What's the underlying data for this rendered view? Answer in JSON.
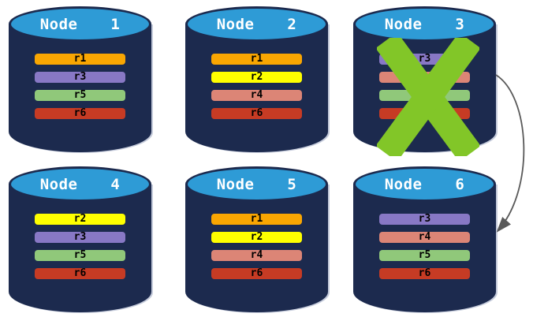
{
  "diagram": {
    "description": "database-cluster-replication",
    "node_count": 6
  },
  "colors": {
    "cylinder_body": "#1C2A4E",
    "cylinder_top": "#2E9BD6",
    "node_title_text": "#FFFFFF",
    "bar_text": "#000000",
    "replica_r1": "#F9A602",
    "replica_r2": "#FFFF00",
    "replica_r3": "#8878C5",
    "replica_r4": "#DC8576",
    "replica_r5": "#90C87A",
    "replica_r6": "#C63B24",
    "failure_x": "#82C628",
    "arrow": "#595959"
  },
  "nodes": [
    {
      "label": "Node  1",
      "failed": false,
      "bars": [
        {
          "label": "r1",
          "color": "#F9A602"
        },
        {
          "label": "r3",
          "color": "#8878C5"
        },
        {
          "label": "r5",
          "color": "#90C87A"
        },
        {
          "label": "r6",
          "color": "#C63B24"
        }
      ]
    },
    {
      "label": "Node  2",
      "failed": false,
      "bars": [
        {
          "label": "r1",
          "color": "#F9A602"
        },
        {
          "label": "r2",
          "color": "#FFFF00"
        },
        {
          "label": "r4",
          "color": "#DC8576"
        },
        {
          "label": "r6",
          "color": "#C63B24"
        }
      ]
    },
    {
      "label": "Node  3",
      "failed": true,
      "bars": [
        {
          "label": "r3",
          "color": "#8878C5"
        },
        {
          "label": "",
          "color": "#DC8576"
        },
        {
          "label": "",
          "color": "#90C87A"
        },
        {
          "label": "",
          "color": "#C63B24"
        }
      ]
    },
    {
      "label": "Node  4",
      "failed": false,
      "bars": [
        {
          "label": "r2",
          "color": "#FFFF00"
        },
        {
          "label": "r3",
          "color": "#8878C5"
        },
        {
          "label": "r5",
          "color": "#90C87A"
        },
        {
          "label": "r6",
          "color": "#C63B24"
        }
      ]
    },
    {
      "label": "Node  5",
      "failed": false,
      "bars": [
        {
          "label": "r1",
          "color": "#F9A602"
        },
        {
          "label": "r2",
          "color": "#FFFF00"
        },
        {
          "label": "r4",
          "color": "#DC8576"
        },
        {
          "label": "r6",
          "color": "#C63B24"
        }
      ]
    },
    {
      "label": "Node  6",
      "failed": false,
      "bars": [
        {
          "label": "r3",
          "color": "#8878C5"
        },
        {
          "label": "r4",
          "color": "#DC8576"
        },
        {
          "label": "r5",
          "color": "#90C87A"
        },
        {
          "label": "r6",
          "color": "#C63B24"
        }
      ]
    }
  ],
  "failure": {
    "node": "Node 3",
    "marker": "green-x"
  },
  "arrow": {
    "from": "Node 3",
    "to": "Node 6"
  }
}
